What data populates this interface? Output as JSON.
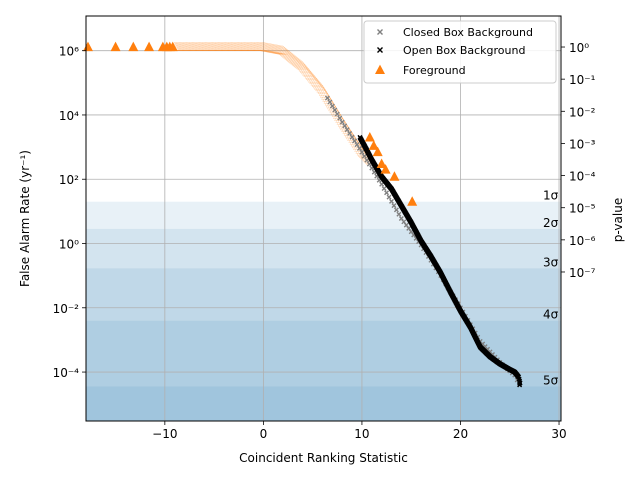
{
  "chart_data": {
    "type": "scatter",
    "xlabel": "Coincident Ranking Statistic",
    "ylabel": "False Alarm Rate (yr⁻¹)",
    "ylabel_right": "p-value",
    "xlim": [
      -18,
      30.2
    ],
    "ylim": [
      3e-06,
      12000000.0
    ],
    "yscale": "log",
    "x_ticks": [
      -10,
      0,
      10,
      20,
      30
    ],
    "x_tick_labels": [
      "−10",
      "0",
      "10",
      "20",
      "30"
    ],
    "y_ticks": [
      0.0001,
      0.01,
      1,
      100.0,
      10000.0,
      1000000.0
    ],
    "y_tick_labels": [
      "10⁻⁴",
      "10⁻²",
      "10⁰",
      "10²",
      "10⁴",
      "10⁶"
    ],
    "p_ticks": [
      1,
      0.1,
      0.01,
      0.001,
      0.0001,
      1e-05,
      1e-06,
      1e-07
    ],
    "p_tick_labels": [
      "10⁰",
      "10⁻¹",
      "10⁻²",
      "10⁻³",
      "10⁻⁴",
      "10⁻⁵",
      "10⁻⁶",
      "10⁻⁷"
    ],
    "grid": true,
    "legend_position": "top-right",
    "sigma_bands": [
      {
        "label": "1σ",
        "far": 20.0
      },
      {
        "label": "2σ",
        "far": 2.85
      },
      {
        "label": "3σ",
        "far": 0.168
      },
      {
        "label": "4σ",
        "far": 0.00395
      },
      {
        "label": "5σ",
        "far": 3.55e-05
      }
    ],
    "band_color": "#1f77b4",
    "series": [
      {
        "name": "Closed Box Background",
        "marker": "x",
        "color": "#808080",
        "curve": [
          [
            -9,
            1300000.0
          ],
          [
            0,
            1300000.0
          ],
          [
            2,
            1000000.0
          ],
          [
            4,
            320000.0
          ],
          [
            6,
            60000.0
          ],
          [
            8,
            6000.0
          ],
          [
            10,
            700.0
          ],
          [
            12,
            70
          ],
          [
            14,
            6.0
          ],
          [
            16,
            0.9
          ],
          [
            18,
            0.1
          ],
          [
            20,
            0.01
          ],
          [
            22,
            0.0009
          ],
          [
            24,
            0.0002
          ],
          [
            25.5,
            8e-05
          ],
          [
            26,
            4e-05
          ]
        ],
        "points": []
      },
      {
        "name": "Open Box Background",
        "marker": "x",
        "color": "#000000",
        "curve": [
          [
            9.8,
            2000.0
          ],
          [
            10.5,
            800.0
          ],
          [
            11,
            400.0
          ],
          [
            12,
            120.0
          ],
          [
            13,
            50
          ],
          [
            14,
            15
          ],
          [
            15,
            4.5
          ],
          [
            16,
            1.2
          ],
          [
            17,
            0.4
          ],
          [
            18,
            0.12
          ],
          [
            19,
            0.03
          ],
          [
            20,
            0.008
          ],
          [
            21,
            0.0025
          ],
          [
            22,
            0.0006
          ],
          [
            23,
            0.0003
          ],
          [
            24,
            0.00018
          ],
          [
            25,
            0.00012
          ],
          [
            25.5,
            0.0001
          ],
          [
            25.9,
            7e-05
          ],
          [
            26.1,
            4e-05
          ]
        ],
        "points": [
          [
            26.0,
            4.5e-05
          ],
          [
            26.0,
            4e-05
          ]
        ]
      },
      {
        "name": "Foreground",
        "marker": "^",
        "color": "#ff7f0e",
        "points": [
          [
            -17.8,
            1300000.0
          ],
          [
            -15,
            1300000.0
          ],
          [
            -13.2,
            1300000.0
          ],
          [
            -11.6,
            1300000.0
          ],
          [
            -10.2,
            1300000.0
          ],
          [
            -9.8,
            1300000.0
          ],
          [
            -9.5,
            1300000.0
          ],
          [
            -9.2,
            1300000.0
          ],
          [
            10.8,
            2000.0
          ],
          [
            11.2,
            1100.0
          ],
          [
            11.6,
            700.0
          ],
          [
            12,
            300.0
          ],
          [
            12.4,
            200.0
          ],
          [
            13.3,
            120.0
          ],
          [
            15.1,
            20.0
          ]
        ],
        "curve": [
          [
            -9,
            1300000.0
          ],
          [
            0,
            1300000.0
          ],
          [
            2,
            1000000.0
          ],
          [
            4,
            320000.0
          ],
          [
            6,
            60000.0
          ],
          [
            8,
            6000.0
          ],
          [
            10,
            700.0
          ],
          [
            11,
            350.0
          ]
        ]
      }
    ]
  }
}
